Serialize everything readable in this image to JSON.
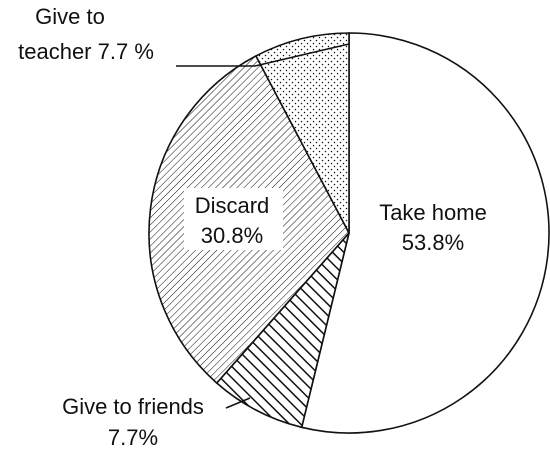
{
  "chart_data": {
    "type": "pie",
    "categories": [
      "Take home",
      "Give to friends",
      "Discard",
      "Give to teacher"
    ],
    "values": [
      53.8,
      7.7,
      30.8,
      7.7
    ],
    "slices": [
      {
        "key": "take-home",
        "name": "Take home",
        "value": 53.8,
        "label_lines": [
          "Take home",
          "53.8%"
        ]
      },
      {
        "key": "give-to-friends",
        "name": "Give to friends",
        "value": 7.7,
        "label_lines": [
          "Give to friends",
          "7.7%"
        ]
      },
      {
        "key": "discard",
        "name": "Discard",
        "value": 30.8,
        "label_lines": [
          "Discard",
          "30.8%"
        ]
      },
      {
        "key": "give-to-teacher",
        "name": "Give to teacher",
        "value": 7.7,
        "label_lines": [
          "Give to",
          "teacher 7.7 %"
        ]
      }
    ],
    "title": "",
    "legend": "none",
    "grid": false
  }
}
